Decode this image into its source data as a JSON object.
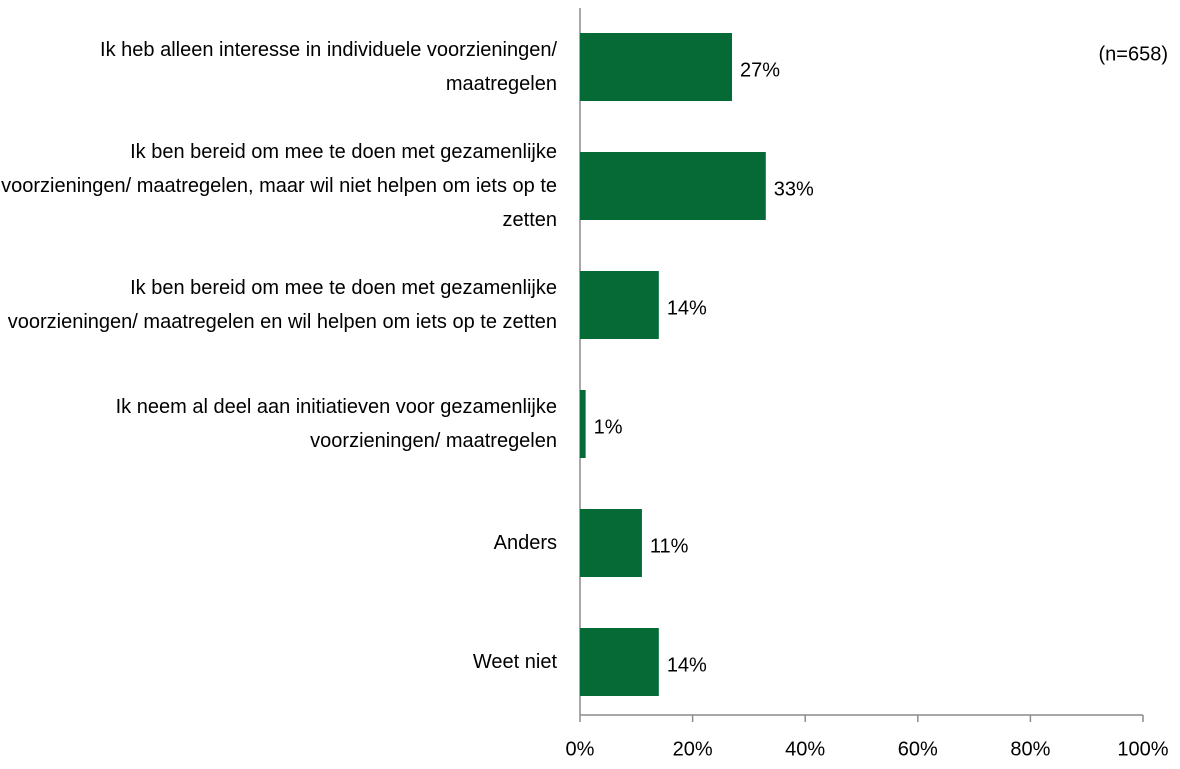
{
  "chart_data": {
    "type": "bar",
    "orientation": "horizontal",
    "annotation": "(n=658)",
    "categories": [
      "Ik heb alleen interesse in individuele voorzieningen/ maatregelen",
      "Ik ben bereid om mee te doen met gezamenlijke voorzieningen/ maatregelen, maar wil niet helpen om iets op te zetten",
      "Ik ben bereid om mee te doen met gezamenlijke voorzieningen/ maatregelen en wil helpen om iets op te zetten",
      "Ik neem al deel aan initiatieven voor gezamenlijke voorzieningen/ maatregelen",
      "Anders",
      "Weet niet"
    ],
    "values": [
      27,
      33,
      14,
      1,
      11,
      14
    ],
    "value_labels": [
      "27%",
      "33%",
      "14%",
      "1%",
      "11%",
      "14%"
    ],
    "color": "#066a36",
    "xlim": [
      0,
      100
    ],
    "xticks": [
      {
        "value": 0,
        "label": "0%"
      },
      {
        "value": 20,
        "label": "20%"
      },
      {
        "value": 40,
        "label": "40%"
      },
      {
        "value": 60,
        "label": "60%"
      },
      {
        "value": 80,
        "label": "80%"
      },
      {
        "value": 100,
        "label": "100%"
      }
    ]
  }
}
